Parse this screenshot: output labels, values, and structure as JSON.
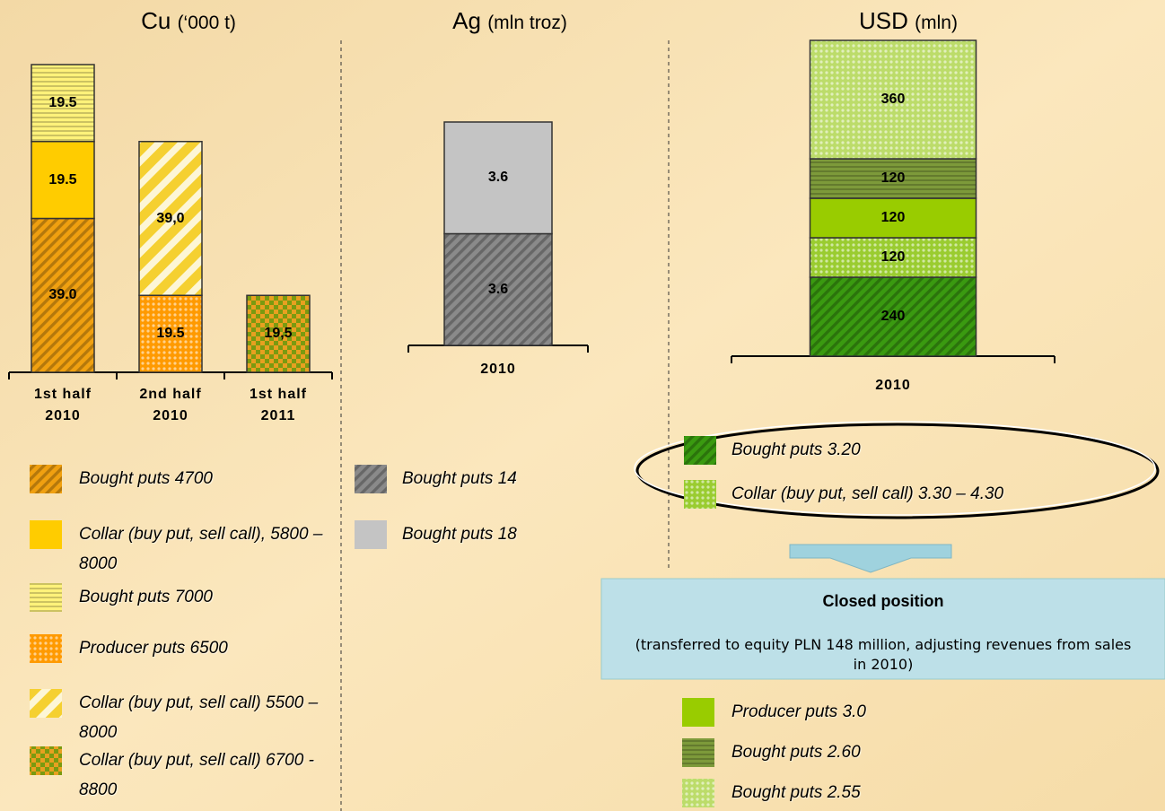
{
  "chart_data": [
    {
      "type": "bar",
      "stacked": true,
      "title": "Cu",
      "unit": "(‘000 t)",
      "categories": [
        "1st half 2010",
        "2nd half 2010",
        "1st half 2011"
      ],
      "series": [
        {
          "name": "Bought puts 4700",
          "color": "#f0a010",
          "pattern": "diagonal",
          "values": [
            39,
            null,
            null
          ],
          "value_labels": [
            "39.0",
            null,
            null
          ]
        },
        {
          "name": "Collar (buy put, sell call), 5800 – 8000",
          "color": "#ffcc00",
          "pattern": "solid",
          "values": [
            19.5,
            null,
            null
          ]
        },
        {
          "name": "Bought puts 7000",
          "color": "#fff27a",
          "pattern": "horizontal",
          "values": [
            19.5,
            null,
            null
          ]
        },
        {
          "name": "Producer puts 6500",
          "color": "#ff9a00",
          "pattern": "dots",
          "values": [
            null,
            19.5,
            null
          ]
        },
        {
          "name": "Collar (buy put, sell call) 5500 – 8000",
          "color": "#f5d030",
          "pattern": "diagonal-light",
          "values": [
            null,
            39,
            null
          ],
          "value_labels": [
            null,
            "39,0",
            null
          ]
        },
        {
          "name": "Collar (buy put, sell call) 6700 - 8800",
          "color": "#7a9a10",
          "pattern": "checker",
          "values": [
            null,
            null,
            19.5
          ],
          "value_labels": [
            null,
            null,
            "19,5"
          ]
        }
      ]
    },
    {
      "type": "bar",
      "stacked": true,
      "title": "Ag",
      "unit": "(mln troz)",
      "categories": [
        "2010"
      ],
      "series": [
        {
          "name": "Bought puts 14",
          "color": "#8a8a8a",
          "pattern": "diagonal",
          "values": [
            3.6
          ]
        },
        {
          "name": "Bought puts 18",
          "color": "#c4c4c4",
          "pattern": "solid",
          "values": [
            3.6
          ]
        }
      ]
    },
    {
      "type": "bar",
      "stacked": true,
      "title": "USD",
      "unit": "(mln)",
      "categories": [
        "2010"
      ],
      "series": [
        {
          "name": "Bought puts 3.20",
          "color": "#3a9a10",
          "pattern": "diagonal",
          "values": [
            240
          ]
        },
        {
          "name": "Collar (buy put, sell call) 3.30 – 4.30",
          "color": "#9acc30",
          "pattern": "dots",
          "values": [
            120
          ]
        },
        {
          "name": "Producer puts 3.0",
          "color": "#99cc00",
          "pattern": "solid",
          "values": [
            120
          ]
        },
        {
          "name": "Bought puts 2.60",
          "color": "#7d9a3a",
          "pattern": "horizontal",
          "values": [
            120
          ]
        },
        {
          "name": "Bought puts 2.55",
          "color": "#bcdc6a",
          "pattern": "dots",
          "values": [
            360
          ]
        }
      ]
    }
  ],
  "closed_position": {
    "title": "Closed position",
    "note": "(transferred to equity PLN 148 million, adjusting revenues from sales in 2010)"
  }
}
